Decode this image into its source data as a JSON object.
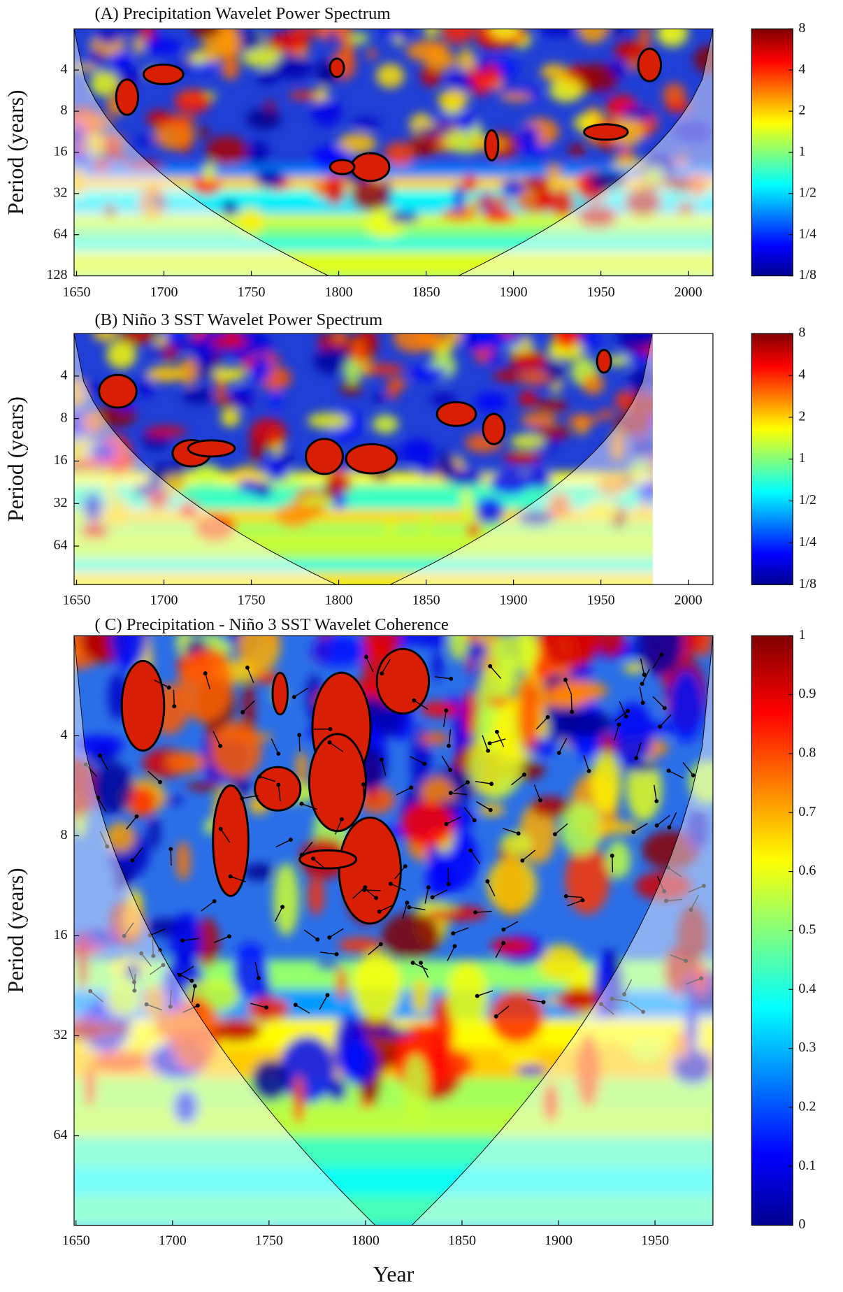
{
  "chart_data": [
    {
      "type": "heatmap",
      "title": "(A) Precipitation Wavelet Power Spectrum",
      "ylabel": "Period (years)",
      "xlim": [
        1648.6,
        2014.1
      ],
      "xticks": [
        1650,
        1700,
        1750,
        1800,
        1850,
        1900,
        1950,
        2000
      ],
      "ylim": [
        2,
        128
      ],
      "yticks": [
        4,
        8,
        16,
        32,
        64,
        128
      ],
      "yscale": "log2",
      "yreversed": true,
      "colorbar": {
        "lim": [
          0.125,
          8
        ],
        "scale": "log2",
        "ticks": [
          8,
          4,
          2,
          1,
          {
            "value": 0.5,
            "label": "1/2"
          },
          {
            "value": 0.25,
            "label": "1/4"
          },
          {
            "value": 0.125,
            "label": "1/8"
          }
        ]
      }
    },
    {
      "type": "heatmap",
      "title": "(B) Niño 3 SST  Wavelet Power Spectrum",
      "ylabel": "Period (years)",
      "xlim": [
        1648.6,
        2014.1
      ],
      "xticks": [
        1650,
        1700,
        1750,
        1800,
        1850,
        1900,
        1950,
        2000
      ],
      "ylim": [
        2,
        120
      ],
      "yticks": [
        4,
        8,
        16,
        32,
        64
      ],
      "yscale": "log2",
      "yreversed": true,
      "colorbar": {
        "lim": [
          0.125,
          8
        ],
        "scale": "log2",
        "ticks": [
          8,
          4,
          2,
          1,
          {
            "value": 0.5,
            "label": "1/2"
          },
          {
            "value": 0.25,
            "label": "1/4"
          },
          {
            "value": 0.125,
            "label": "1/8"
          }
        ]
      }
    },
    {
      "type": "heatmap",
      "title": "( C) Precipitation - Niño 3 SST  Wavelet Coherence",
      "ylabel": "Period (years)",
      "xlabel": "Year",
      "xlim": [
        1649,
        1980
      ],
      "xticks": [
        1650,
        1700,
        1750,
        1800,
        1850,
        1900,
        1950
      ],
      "ylim": [
        2,
        119
      ],
      "yticks": [
        4,
        8,
        16,
        32,
        64
      ],
      "yscale": "log2",
      "yreversed": true,
      "colorbar": {
        "lim": [
          0,
          1
        ],
        "scale": "linear",
        "ticks": [
          0,
          0.1,
          0.2,
          0.3,
          0.4,
          0.5,
          0.6,
          0.7,
          0.8,
          0.9,
          1
        ]
      }
    }
  ]
}
